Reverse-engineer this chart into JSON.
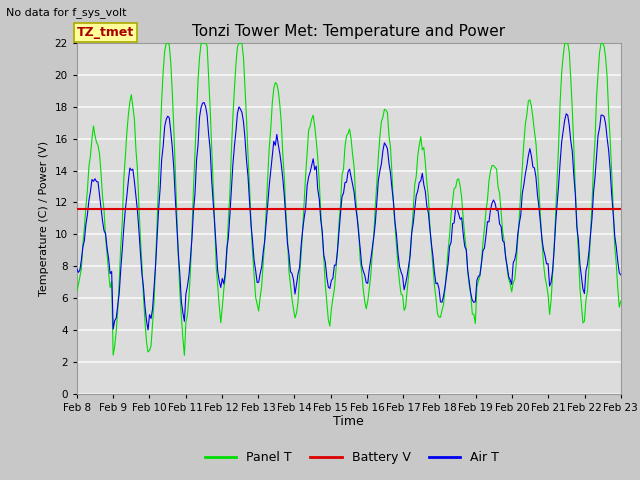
{
  "title": "Tonzi Tower Met: Temperature and Power",
  "no_data_text": "No data for f_sys_volt",
  "annotation_text": "TZ_tmet",
  "ylabel": "Temperature (C) / Power (V)",
  "xlabel": "Time",
  "ylim": [
    0,
    22
  ],
  "yticks": [
    0,
    2,
    4,
    6,
    8,
    10,
    12,
    14,
    16,
    18,
    20,
    22
  ],
  "battery_v": 11.6,
  "panel_color": "#00DD00",
  "air_color": "#0000EE",
  "battery_color": "#DD0000",
  "bg_color": "#DCDCDC",
  "grid_color": "#F0F0F0",
  "legend_labels": [
    "Panel T",
    "Battery V",
    "Air T"
  ],
  "xtick_labels": [
    "Feb 8",
    "Feb 9",
    "Feb 10",
    "Feb 11",
    "Feb 12",
    "Feb 13",
    "Feb 14",
    "Feb 15",
    "Feb 16",
    "Feb 17",
    "Feb 18",
    "Feb 19",
    "Feb 20",
    "Feb 21",
    "Feb 22",
    "Feb 23"
  ],
  "n_days": 15,
  "pts_per_day": 24
}
